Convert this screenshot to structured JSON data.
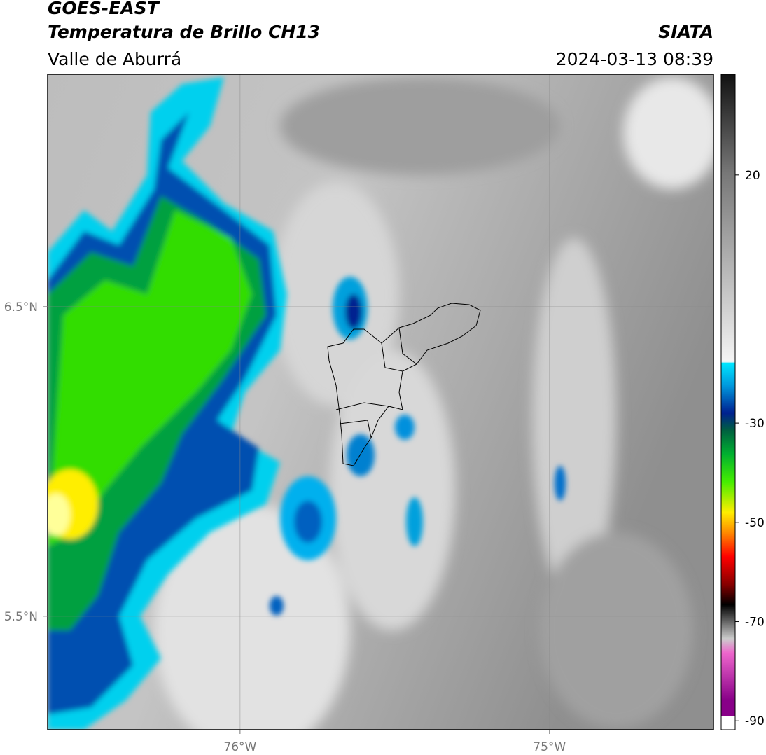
{
  "header": {
    "title": "GOES-EAST",
    "subtitle": "Temperatura de Brillo CH13",
    "region": "Valle de Aburrá",
    "source": "SIATA",
    "timestamp": "2024-03-13 08:39"
  },
  "map": {
    "xlim": [
      -76.622,
      -74.47
    ],
    "ylim": [
      5.133,
      7.251
    ],
    "xticks": [
      {
        "value": -76,
        "label": "76°W"
      },
      {
        "value": -75,
        "label": "75°W"
      }
    ],
    "yticks": [
      {
        "value": 6.5,
        "label": "6.5°N"
      },
      {
        "value": 5.5,
        "label": "5.5°N"
      }
    ],
    "grid": true
  },
  "colorbar": {
    "lim": [
      -91.8,
      40.3
    ],
    "ticks": [
      20,
      -30,
      -50,
      -70,
      -90
    ]
  }
}
